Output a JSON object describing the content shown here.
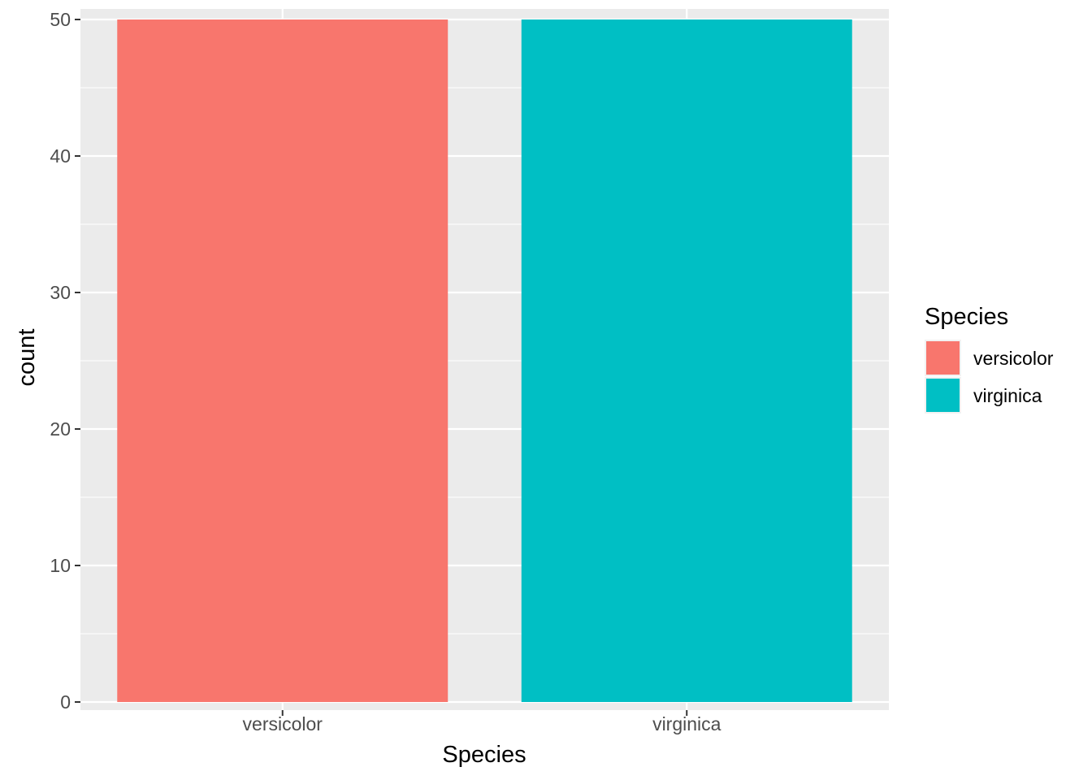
{
  "chart_data": {
    "type": "bar",
    "categories": [
      "versicolor",
      "virginica"
    ],
    "values": [
      50,
      50
    ],
    "colors": [
      "#F8766D",
      "#00BFC4"
    ],
    "xlabel": "Species",
    "ylabel": "count",
    "ylim": [
      0,
      50
    ],
    "yticks": [
      0,
      10,
      20,
      30,
      40,
      50
    ],
    "grid": true,
    "panel_background": "#EBEBEB",
    "legend": {
      "title": "Species",
      "position": "right",
      "entries": [
        "versicolor",
        "virginica"
      ]
    }
  }
}
